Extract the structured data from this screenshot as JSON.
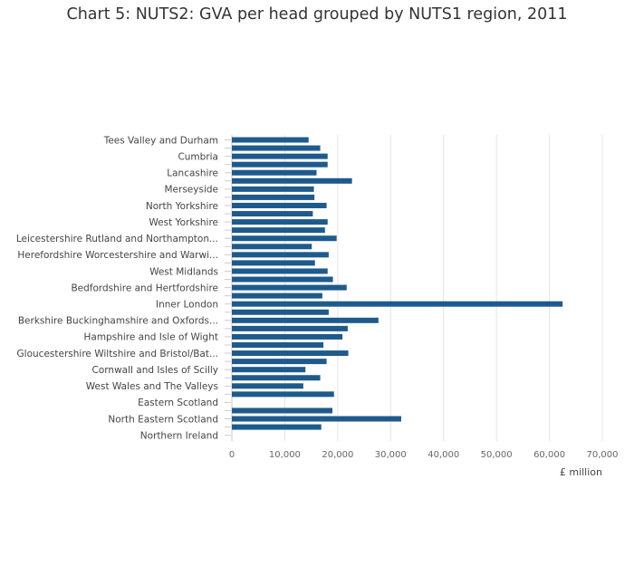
{
  "chart_data": {
    "type": "bar",
    "orientation": "horizontal",
    "title": "Chart 5: NUTS2: GVA per head grouped by NUTS1 region, 2011",
    "xlabel": "£ million",
    "ylabel": "",
    "xlim": [
      0,
      70000
    ],
    "x_ticks": [
      0,
      10000,
      20000,
      30000,
      40000,
      50000,
      60000,
      70000
    ],
    "x_tick_labels": [
      "0",
      "10,000",
      "20,000",
      "30,000",
      "40,000",
      "50,000",
      "60,000",
      "70,000"
    ],
    "grid": true,
    "bar_color": "#1f5a8c",
    "categories": [
      "Tees Valley and Durham",
      "",
      "Cumbria",
      "",
      "Lancashire",
      "",
      "Merseyside",
      "",
      "North Yorkshire",
      "",
      "West Yorkshire",
      "",
      "Leicestershire Rutland and Northampton...",
      "",
      "Herefordshire Worcestershire and Warwi...",
      "",
      "West Midlands",
      "",
      "Bedfordshire and Hertfordshire",
      "",
      "Inner London",
      "",
      "Berkshire Buckinghamshire and Oxfords...",
      "",
      "Hampshire and Isle of Wight",
      "",
      "Gloucestershire Wiltshire and Bristol/Bat...",
      "",
      "Cornwall and Isles of Scilly",
      "",
      "West Wales and The Valleys",
      "",
      "Eastern Scotland",
      "",
      "North Eastern Scotland",
      "",
      "Northern Ireland"
    ],
    "values": [
      14500,
      16700,
      18100,
      18100,
      16000,
      22700,
      15500,
      15600,
      17900,
      15300,
      18100,
      17600,
      19800,
      15100,
      18300,
      15700,
      18100,
      19100,
      21700,
      17100,
      62500,
      18300,
      27700,
      21900,
      20900,
      17300,
      22000,
      17900,
      13900,
      16700,
      13500,
      19300,
      0,
      19000,
      32000,
      16900,
      null
    ]
  }
}
